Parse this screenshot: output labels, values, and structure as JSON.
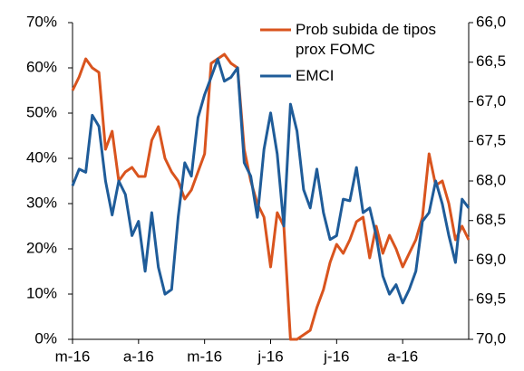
{
  "chart_data": {
    "type": "line",
    "categories": [
      "m-16",
      null,
      null,
      null,
      null,
      null,
      null,
      null,
      null,
      null,
      "a-16",
      null,
      null,
      null,
      null,
      null,
      null,
      null,
      null,
      null,
      "m-16",
      null,
      null,
      null,
      null,
      null,
      null,
      null,
      null,
      null,
      "j-16",
      null,
      null,
      null,
      null,
      null,
      null,
      null,
      null,
      null,
      "j-16",
      null,
      null,
      null,
      null,
      null,
      null,
      null,
      null,
      null,
      "a-16",
      null,
      null,
      null,
      null,
      null,
      null,
      null,
      null,
      null,
      null
    ],
    "series": [
      {
        "name": "Prob subida de tipos prox FOMC",
        "color": "#d9541e",
        "axis": "y",
        "values": [
          55,
          58,
          62,
          60,
          59,
          42,
          46,
          35,
          37,
          38,
          36,
          36,
          44,
          47,
          40,
          37,
          35,
          31,
          33,
          37,
          41,
          61,
          62,
          63,
          61,
          60,
          42,
          35,
          30,
          27,
          16,
          28,
          25,
          0,
          0,
          1,
          2,
          7,
          11,
          17,
          21,
          19,
          22,
          26,
          27,
          18,
          25,
          19,
          23,
          20,
          16,
          19,
          22,
          27,
          41,
          34,
          35,
          30,
          22,
          25,
          22
        ]
      },
      {
        "name": "EMCI",
        "color": "#1f5c99",
        "axis": "y2",
        "values": [
          68.06,
          67.85,
          67.89,
          67.17,
          67.31,
          68.0,
          68.43,
          68.0,
          68.17,
          68.69,
          68.51,
          69.14,
          68.4,
          69.09,
          69.43,
          69.37,
          68.46,
          67.77,
          67.94,
          67.2,
          66.91,
          66.69,
          66.46,
          66.74,
          66.69,
          66.57,
          67.77,
          67.94,
          68.46,
          67.6,
          67.14,
          67.66,
          68.57,
          67.03,
          67.37,
          68.11,
          68.34,
          67.85,
          68.4,
          68.74,
          68.69,
          68.23,
          68.25,
          67.83,
          68.4,
          68.34,
          68.69,
          69.2,
          69.43,
          69.31,
          69.54,
          69.37,
          69.14,
          68.51,
          68.4,
          68.0,
          68.29,
          68.69,
          69.03,
          68.23,
          68.34
        ]
      }
    ],
    "ylim": [
      0,
      70
    ],
    "yticks": [
      {
        "value": 0,
        "label": "0%"
      },
      {
        "value": 10,
        "label": "10%"
      },
      {
        "value": 20,
        "label": "20%"
      },
      {
        "value": 30,
        "label": "30%"
      },
      {
        "value": 40,
        "label": "40%"
      },
      {
        "value": 50,
        "label": "50%"
      },
      {
        "value": 60,
        "label": "60%"
      },
      {
        "value": 70,
        "label": "70%"
      }
    ],
    "y2lim": [
      66,
      70
    ],
    "y2_inverted": true,
    "y2ticks": [
      {
        "value": 66,
        "label": "66,0"
      },
      {
        "value": 66.5,
        "label": "66,5"
      },
      {
        "value": 67,
        "label": "67,0"
      },
      {
        "value": 67.5,
        "label": "67,5"
      },
      {
        "value": 68,
        "label": "68,0"
      },
      {
        "value": 68.5,
        "label": "68,5"
      },
      {
        "value": 69,
        "label": "69,0"
      },
      {
        "value": 69.5,
        "label": "69,5"
      },
      {
        "value": 70,
        "label": "70,0"
      }
    ],
    "grid": false,
    "legend": "top-right"
  }
}
